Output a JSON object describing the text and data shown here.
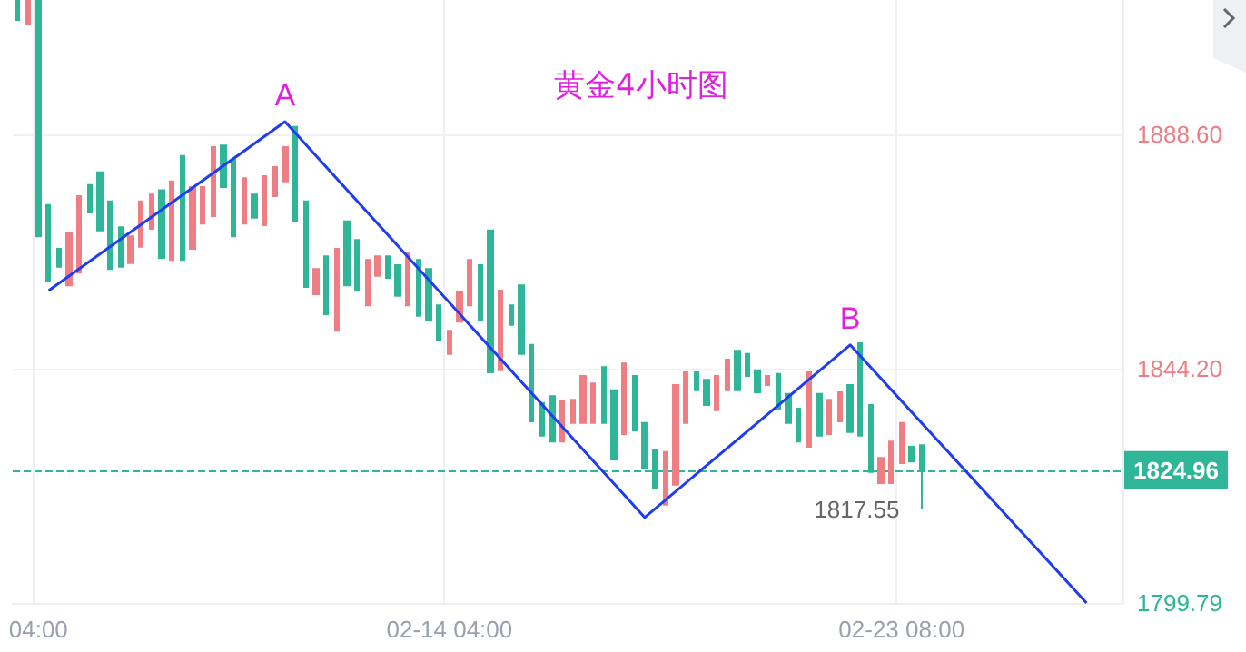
{
  "chart_data": {
    "type": "candlestick",
    "title": "黄金4小时图",
    "categories": [
      null,
      null,
      "04:00",
      null,
      null,
      null,
      null,
      null,
      null,
      null,
      null,
      null,
      null,
      null,
      null,
      null,
      null,
      null,
      null,
      null,
      null,
      null,
      null,
      null,
      null,
      null,
      null,
      null,
      null,
      null,
      null,
      null,
      null,
      null,
      null,
      null,
      null,
      null,
      null,
      null,
      null,
      null,
      "02-14 04:00",
      null,
      null,
      null,
      null,
      null,
      null,
      null,
      null,
      null,
      null,
      null,
      null,
      null,
      null,
      null,
      null,
      null,
      null,
      null,
      null,
      null,
      null,
      null,
      null,
      null,
      null,
      null,
      null,
      null,
      null,
      null,
      null,
      null,
      null,
      null,
      null,
      null,
      null,
      null,
      null,
      null,
      null,
      null,
      "02-23 08:00",
      null,
      null,
      null,
      null,
      null,
      null,
      null,
      null,
      null,
      null,
      null,
      null,
      null,
      null,
      null,
      null,
      null,
      null,
      null,
      null,
      null
    ],
    "ohlc": [
      [
        1914.0,
        1914.0,
        1910.3,
        1910.3
      ],
      [
        1909.6,
        1914.0,
        1909.6,
        1914.0
      ],
      [
        1914.0,
        1914.0,
        1869.3,
        1869.3
      ],
      [
        1875.2,
        1875.2,
        1860.7,
        1860.7
      ],
      [
        1866.9,
        1866.9,
        1863.5,
        1863.5
      ],
      [
        1860.0,
        1870.0,
        1860.0,
        1870.0
      ],
      [
        1862.4,
        1876.9,
        1862.4,
        1876.9
      ],
      [
        1879.0,
        1879.0,
        1873.8,
        1873.8
      ],
      [
        1881.4,
        1881.4,
        1870.4,
        1870.4
      ],
      [
        1875.9,
        1875.9,
        1863.1,
        1863.1
      ],
      [
        1871.0,
        1871.0,
        1863.5,
        1863.5
      ],
      [
        1864.2,
        1869.3,
        1864.2,
        1869.3
      ],
      [
        1867.3,
        1875.9,
        1867.3,
        1875.9
      ],
      [
        1870.7,
        1877.2,
        1870.7,
        1877.2
      ],
      [
        1878.0,
        1878.0,
        1865.2,
        1865.2
      ],
      [
        1864.8,
        1879.7,
        1864.8,
        1879.7
      ],
      [
        1884.5,
        1884.5,
        1864.8,
        1864.8
      ],
      [
        1866.9,
        1878.6,
        1866.9,
        1878.6
      ],
      [
        1871.7,
        1878.6,
        1871.7,
        1878.6
      ],
      [
        1873.1,
        1886.2,
        1873.1,
        1886.2
      ],
      [
        1886.5,
        1886.5,
        1878.6,
        1878.6
      ],
      [
        1883.8,
        1883.8,
        1869.3,
        1869.3
      ],
      [
        1871.7,
        1880.3,
        1871.7,
        1880.3
      ],
      [
        1877.2,
        1877.2,
        1872.8,
        1872.8
      ],
      [
        1871.4,
        1880.7,
        1871.4,
        1880.7
      ],
      [
        1876.9,
        1882.4,
        1876.9,
        1882.4
      ],
      [
        1879.7,
        1886.2,
        1879.7,
        1886.2
      ],
      [
        1890.0,
        1890.0,
        1872.1,
        1872.1
      ],
      [
        1875.9,
        1875.9,
        1859.7,
        1859.7
      ],
      [
        1858.3,
        1863.1,
        1858.3,
        1863.1
      ],
      [
        1865.5,
        1865.5,
        1854.5,
        1854.5
      ],
      [
        1851.4,
        1866.9,
        1851.4,
        1866.9
      ],
      [
        1872.1,
        1872.1,
        1860.0,
        1860.0
      ],
      [
        1868.6,
        1868.6,
        1859.0,
        1859.0
      ],
      [
        1856.2,
        1864.8,
        1856.2,
        1864.8
      ],
      [
        1861.8,
        1865.5,
        1861.8,
        1865.5
      ],
      [
        1865.5,
        1865.5,
        1861.4,
        1861.4
      ],
      [
        1863.8,
        1863.8,
        1858.0,
        1858.0
      ],
      [
        1856.2,
        1866.2,
        1856.2,
        1866.2
      ],
      [
        1864.8,
        1864.8,
        1854.2,
        1854.2
      ],
      [
        1863.1,
        1863.1,
        1853.5,
        1853.5
      ],
      [
        1856.2,
        1856.2,
        1849.7,
        1849.7
      ],
      [
        1847.0,
        1851.4,
        1847.0,
        1851.4
      ],
      [
        1853.1,
        1858.7,
        1853.1,
        1858.7
      ],
      [
        1856.2,
        1864.8,
        1856.2,
        1864.8
      ],
      [
        1863.8,
        1863.8,
        1853.5,
        1853.5
      ],
      [
        1870.4,
        1870.4,
        1843.5,
        1843.5
      ],
      [
        1843.9,
        1859.0,
        1843.9,
        1859.0
      ],
      [
        1856.2,
        1856.2,
        1852.5,
        1852.5
      ],
      [
        1860.0,
        1860.0,
        1847.0,
        1847.0
      ],
      [
        1848.7,
        1848.7,
        1834.2,
        1834.2
      ],
      [
        1837.7,
        1837.7,
        1831.5,
        1831.5
      ],
      [
        1839.0,
        1839.0,
        1830.4,
        1830.4
      ],
      [
        1830.4,
        1838.0,
        1830.4,
        1838.0
      ],
      [
        1833.9,
        1838.3,
        1833.9,
        1838.3
      ],
      [
        1833.9,
        1842.8,
        1833.9,
        1842.8
      ],
      [
        1833.9,
        1841.4,
        1833.9,
        1841.4
      ],
      [
        1844.5,
        1844.5,
        1833.9,
        1833.9
      ],
      [
        1840.1,
        1840.1,
        1827.0,
        1827.0
      ],
      [
        1831.8,
        1845.2,
        1831.8,
        1845.2
      ],
      [
        1842.8,
        1842.8,
        1832.5,
        1832.5
      ],
      [
        1833.9,
        1833.9,
        1825.3,
        1825.3
      ],
      [
        1828.7,
        1828.7,
        1821.5,
        1821.5
      ],
      [
        1818.4,
        1828.4,
        1818.4,
        1828.4
      ],
      [
        1822.2,
        1841.1,
        1822.2,
        1841.1
      ],
      [
        1833.9,
        1843.5,
        1833.9,
        1843.5
      ],
      [
        1843.5,
        1843.5,
        1840.1,
        1840.1
      ],
      [
        1842.1,
        1842.1,
        1837.3,
        1837.3
      ],
      [
        1836.3,
        1842.8,
        1836.3,
        1842.8
      ],
      [
        1840.1,
        1845.9,
        1840.1,
        1845.9
      ],
      [
        1847.6,
        1847.6,
        1840.1,
        1840.1
      ],
      [
        1847.0,
        1847.0,
        1842.8,
        1842.8
      ],
      [
        1843.9,
        1843.9,
        1839.7,
        1839.7
      ],
      [
        1841.1,
        1842.8,
        1841.1,
        1842.8
      ],
      [
        1843.2,
        1843.2,
        1836.6,
        1836.6
      ],
      [
        1839.4,
        1839.4,
        1833.9,
        1833.9
      ],
      [
        1836.6,
        1836.6,
        1830.4,
        1830.4
      ],
      [
        1829.4,
        1843.5,
        1829.4,
        1843.5
      ],
      [
        1839.4,
        1839.4,
        1831.5,
        1831.5
      ],
      [
        1831.8,
        1838.3,
        1831.8,
        1838.3
      ],
      [
        1834.2,
        1839.7,
        1834.2,
        1839.7
      ],
      [
        1841.1,
        1841.1,
        1832.2,
        1832.2
      ],
      [
        1849.0,
        1849.0,
        1831.5,
        1831.5
      ],
      [
        1837.3,
        1837.3,
        1824.6,
        1824.6
      ],
      [
        1822.5,
        1827.3,
        1822.5,
        1827.3
      ],
      [
        1822.5,
        1830.4,
        1822.5,
        1830.4
      ],
      [
        1826.3,
        1833.9,
        1826.3,
        1833.9
      ],
      [
        1829.4,
        1829.4,
        1826.6,
        1826.6
      ],
      [
        1829.7,
        1829.7,
        1817.55,
        1824.96
      ],
      null,
      null,
      null,
      null,
      null,
      null,
      null,
      null,
      null,
      null,
      null,
      null,
      null,
      null,
      null,
      null,
      null,
      null,
      null
    ],
    "colors": [
      "#2fb597",
      "#ee7d84",
      "#2fb597",
      "#2fb597",
      "#2fb597",
      "#ee7d84",
      "#ee7d84",
      "#2fb597",
      "#2fb597",
      "#2fb597",
      "#2fb597",
      "#ee7d84",
      "#ee7d84",
      "#ee7d84",
      "#2fb597",
      "#ee7d84",
      "#2fb597",
      "#ee7d84",
      "#ee7d84",
      "#ee7d84",
      "#2fb597",
      "#2fb597",
      "#ee7d84",
      "#2fb597",
      "#ee7d84",
      "#ee7d84",
      "#ee7d84",
      "#2fb597",
      "#2fb597",
      "#ee7d84",
      "#2fb597",
      "#ee7d84",
      "#2fb597",
      "#2fb597",
      "#ee7d84",
      "#ee7d84",
      "#2fb597",
      "#2fb597",
      "#ee7d84",
      "#2fb597",
      "#2fb597",
      "#2fb597",
      "#ee7d84",
      "#ee7d84",
      "#ee7d84",
      "#2fb597",
      "#2fb597",
      "#ee7d84",
      "#2fb597",
      "#2fb597",
      "#2fb597",
      "#2fb597",
      "#2fb597",
      "#ee7d84",
      "#ee7d84",
      "#ee7d84",
      "#ee7d84",
      "#2fb597",
      "#2fb597",
      "#ee7d84",
      "#2fb597",
      "#2fb597",
      "#2fb597",
      "#ee7d84",
      "#ee7d84",
      "#ee7d84",
      "#2fb597",
      "#2fb597",
      "#ee7d84",
      "#ee7d84",
      "#2fb597",
      "#2fb597",
      "#2fb597",
      "#ee7d84",
      "#2fb597",
      "#2fb597",
      "#2fb597",
      "#ee7d84",
      "#2fb597",
      "#ee7d84",
      "#ee7d84",
      "#2fb597",
      "#2fb597",
      "#2fb597",
      "#ee7d84",
      "#ee7d84",
      "#ee7d84",
      "#2fb597",
      "#2fb597",
      null,
      null,
      null,
      null,
      null,
      null,
      null,
      null,
      null,
      null,
      null,
      null,
      null,
      null,
      null,
      null,
      null,
      null,
      null
    ],
    "series": [
      {
        "type": "line",
        "color": "#1f3cf5",
        "marker": "none",
        "line_style": "solid",
        "values": [
          null,
          null,
          null,
          1859.0,
          null,
          null,
          null,
          null,
          null,
          null,
          null,
          null,
          null,
          null,
          null,
          null,
          null,
          null,
          null,
          null,
          null,
          null,
          null,
          null,
          null,
          null,
          1891.0,
          null,
          null,
          null,
          null,
          null,
          null,
          null,
          null,
          null,
          null,
          null,
          null,
          null,
          null,
          null,
          null,
          null,
          null,
          null,
          null,
          null,
          null,
          null,
          null,
          null,
          null,
          null,
          null,
          null,
          null,
          null,
          null,
          null,
          null,
          1816.0,
          null,
          null,
          null,
          null,
          null,
          null,
          null,
          null,
          null,
          null,
          null,
          null,
          null,
          null,
          null,
          null,
          null,
          null,
          null,
          1848.7,
          null,
          null,
          null,
          null,
          null,
          null,
          null,
          null,
          null,
          null,
          null,
          null,
          null,
          null,
          null,
          null,
          null,
          null,
          null,
          null,
          null,
          null,
          1799.8,
          null,
          null,
          null
        ],
        "value_labels": [
          null,
          null,
          null,
          null,
          null,
          null,
          null,
          null,
          null,
          null,
          null,
          null,
          null,
          null,
          null,
          null,
          null,
          null,
          null,
          null,
          null,
          null,
          null,
          null,
          null,
          null,
          "A",
          null,
          null,
          null,
          null,
          null,
          null,
          null,
          null,
          null,
          null,
          null,
          null,
          null,
          null,
          null,
          null,
          null,
          null,
          null,
          null,
          null,
          null,
          null,
          null,
          null,
          null,
          null,
          null,
          null,
          null,
          null,
          null,
          null,
          null,
          null,
          null,
          null,
          null,
          null,
          null,
          null,
          null,
          null,
          null,
          null,
          null,
          null,
          null,
          null,
          null,
          null,
          null,
          null,
          null,
          "B",
          null,
          null,
          null,
          null,
          null,
          null,
          null,
          null,
          null,
          null,
          null,
          null,
          null,
          null,
          null,
          null,
          null,
          null,
          null,
          null,
          null,
          null,
          null,
          null,
          null,
          null
        ]
      }
    ],
    "ylim": [
      1799.79,
      1914.07
    ],
    "yticks": [
      {
        "value": 1799.79,
        "label": "1799.79"
      },
      {
        "value": 1844.2,
        "label": "1844.20"
      },
      {
        "value": 1888.6,
        "label": "1888.60"
      }
    ],
    "ref_lines": [
      {
        "axis": "y",
        "value": 1824.96,
        "label": "1824.96",
        "color": "#2fb597",
        "line_style": "dashed"
      }
    ],
    "annotations": [
      "1817.55"
    ],
    "grid": true
  }
}
